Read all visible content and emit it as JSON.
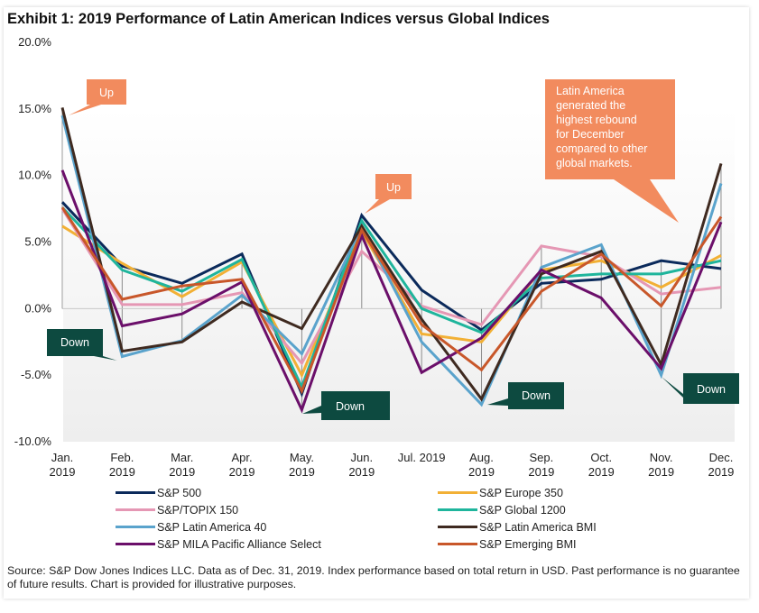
{
  "title": "Exhibit 1: 2019 Performance of Latin American Indices versus Global Indices",
  "source": "Source: S&P Dow Jones Indices LLC. Data as of Dec. 31, 2019. Index performance based on total return in USD. Past performance is no guarantee of future results. Chart is provided for illustrative purposes.",
  "annotations": [
    {
      "label": "Up",
      "kind": "up",
      "month": "Jan. 2019"
    },
    {
      "label": "Up",
      "kind": "up",
      "month": "Jun. 2019"
    },
    {
      "label": "Down",
      "kind": "down",
      "month": "Feb. 2019"
    },
    {
      "label": "Down",
      "kind": "down",
      "month": "May. 2019"
    },
    {
      "label": "Down",
      "kind": "down",
      "month": "Aug. 2019"
    },
    {
      "label": "Down",
      "kind": "down",
      "month": "Nov. 2019"
    },
    {
      "label": "Latin America generated the highest rebound for December compared to other global markets.",
      "lines": [
        "Latin America",
        "generated the",
        "highest rebound",
        "for December",
        "compared to other",
        "global markets."
      ],
      "kind": "note",
      "month": "Dec. 2019"
    }
  ],
  "colors": {
    "up_callout": "#f28b5e",
    "down_callout": "#0d4a40",
    "plot_bg_top": "#ffffff",
    "plot_bg_bottom": "#eeeeee"
  },
  "chart_data": {
    "type": "line",
    "title": "Exhibit 1: 2019 Performance of Latin American Indices versus Global Indices",
    "xlabel": "",
    "ylabel": "",
    "ylim": [
      -10,
      20
    ],
    "yticks": [
      "20.0%",
      "15.0%",
      "10.0%",
      "5.0%",
      "0.0%",
      "-5.0%",
      "-10.0%"
    ],
    "ytick_values": [
      20,
      15,
      10,
      5,
      0,
      -5,
      -10
    ],
    "categories": [
      [
        "Jan.",
        "2019"
      ],
      [
        "Feb.",
        "2019"
      ],
      [
        "Mar.",
        "2019"
      ],
      [
        "Apr.",
        "2019"
      ],
      [
        "May.",
        "2019"
      ],
      [
        "Jun.",
        "2019"
      ],
      [
        "Jul. 2019"
      ],
      [
        "Aug.",
        "2019"
      ],
      [
        "Sep.",
        "2019"
      ],
      [
        "Oct.",
        "2019"
      ],
      [
        "Nov.",
        "2019"
      ],
      [
        "Dec.",
        "2019"
      ]
    ],
    "grid": false,
    "legend_position": "bottom",
    "series": [
      {
        "name": "S&P 500",
        "color": "#0b2a5b",
        "values": [
          8.0,
          3.2,
          1.9,
          4.1,
          -6.4,
          7.0,
          1.4,
          -1.6,
          1.9,
          2.2,
          3.6,
          3.0
        ]
      },
      {
        "name": "S&P Europe 350",
        "color": "#f2b035",
        "values": [
          6.2,
          3.4,
          0.9,
          3.5,
          -5.0,
          5.8,
          -1.9,
          -2.5,
          2.9,
          3.6,
          1.6,
          4.0
        ]
      },
      {
        "name": "S&P/TOPIX 150",
        "color": "#e597b4",
        "values": [
          7.5,
          0.3,
          0.3,
          1.2,
          -4.1,
          4.3,
          0.2,
          -1.2,
          4.7,
          3.9,
          1.1,
          1.6
        ]
      },
      {
        "name": "S&P Global 1200",
        "color": "#1fb59c",
        "values": [
          7.6,
          2.9,
          1.3,
          3.7,
          -5.9,
          6.6,
          0.0,
          -1.8,
          2.3,
          2.6,
          2.6,
          3.6
        ]
      },
      {
        "name": "S&P Latin America 40",
        "color": "#5aa3cc",
        "values": [
          14.5,
          -3.6,
          -2.4,
          1.0,
          -3.4,
          6.2,
          -2.5,
          -7.2,
          3.1,
          4.8,
          -5.0,
          9.4
        ]
      },
      {
        "name": "S&P Latin America BMI",
        "color": "#3f2a20",
        "values": [
          15.1,
          -3.2,
          -2.5,
          0.5,
          -1.5,
          6.2,
          -0.8,
          -6.8,
          2.6,
          4.3,
          -4.2,
          10.9
        ]
      },
      {
        "name": "S&P MILA Pacific Alliance Select",
        "color": "#6b0f6a",
        "values": [
          10.4,
          -1.3,
          -0.4,
          2.0,
          -7.6,
          5.5,
          -4.8,
          -2.2,
          2.9,
          0.8,
          -4.5,
          6.5
        ]
      },
      {
        "name": "S&P Emerging BMI",
        "color": "#c8572a",
        "values": [
          7.6,
          0.7,
          1.7,
          2.2,
          -6.2,
          5.9,
          -1.2,
          -4.6,
          1.3,
          4.1,
          0.2,
          6.9
        ]
      }
    ]
  }
}
